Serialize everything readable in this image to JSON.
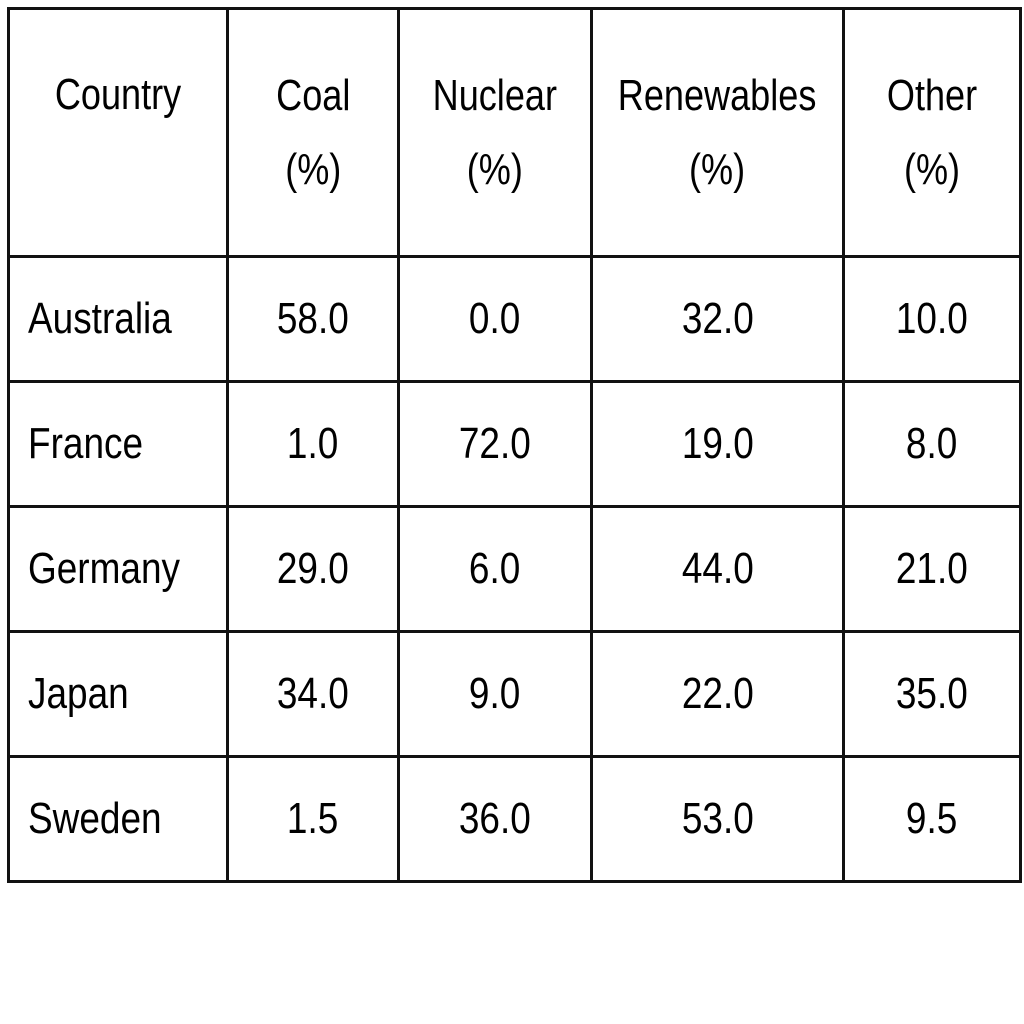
{
  "chart_data": {
    "type": "table",
    "columns": [
      {
        "key": "country",
        "label_lines": [
          "Country"
        ]
      },
      {
        "key": "coal",
        "label_lines": [
          "Coal",
          "(%)"
        ]
      },
      {
        "key": "nuclear",
        "label_lines": [
          "Nuclear",
          "(%)"
        ]
      },
      {
        "key": "renewables",
        "label_lines": [
          "Renewables",
          "(%)"
        ]
      },
      {
        "key": "other",
        "label_lines": [
          "Other",
          "(%)"
        ]
      }
    ],
    "rows": [
      {
        "country": "Australia",
        "coal": "58.0",
        "nuclear": "0.0",
        "renewables": "32.0",
        "other": "10.0"
      },
      {
        "country": "France",
        "coal": "1.0",
        "nuclear": "72.0",
        "renewables": "19.0",
        "other": "8.0"
      },
      {
        "country": "Germany",
        "coal": "29.0",
        "nuclear": "6.0",
        "renewables": "44.0",
        "other": "21.0"
      },
      {
        "country": "Japan",
        "coal": "34.0",
        "nuclear": "9.0",
        "renewables": "22.0",
        "other": "35.0"
      },
      {
        "country": "Sweden",
        "coal": "1.5",
        "nuclear": "36.0",
        "renewables": "53.0",
        "other": "9.5"
      }
    ]
  }
}
